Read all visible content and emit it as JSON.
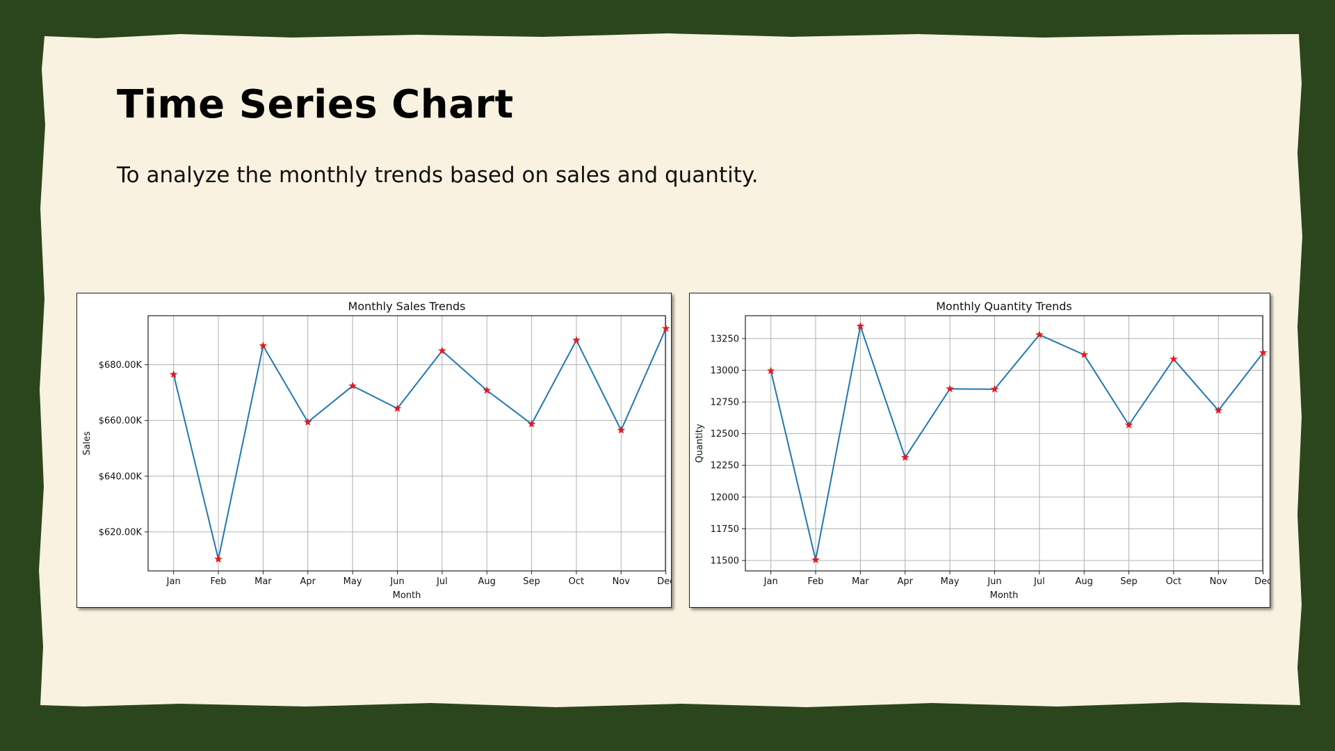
{
  "slide": {
    "title": "Time Series Chart",
    "subtitle": "To analyze the monthly trends based on sales and quantity."
  },
  "colors": {
    "background": "#2b461d",
    "paper": "#f9f2e0",
    "line": "#1f77b4",
    "marker": "#e31a1c"
  },
  "chart_data": [
    {
      "type": "line",
      "title": "Monthly Sales Trends",
      "xlabel": "Month",
      "ylabel": "Sales",
      "categories": [
        "Jan",
        "Feb",
        "Mar",
        "Apr",
        "May",
        "Jun",
        "Jul",
        "Aug",
        "Sep",
        "Oct",
        "Nov",
        "Dec"
      ],
      "values": [
        676500,
        610200,
        686800,
        659400,
        672400,
        664300,
        685000,
        670800,
        658700,
        688800,
        656500,
        693000
      ],
      "ylim": [
        606000,
        697600
      ],
      "yticks": [
        620000,
        640000,
        660000,
        680000
      ],
      "ytick_labels": [
        "$620.00K",
        "$640.00K",
        "$660.00K",
        "$680.00K"
      ],
      "grid": true,
      "marker": "star"
    },
    {
      "type": "line",
      "title": "Monthly Quantity Trends",
      "xlabel": "Month",
      "ylabel": "Quantity",
      "categories": [
        "Jan",
        "Feb",
        "Mar",
        "Apr",
        "May",
        "Jun",
        "Jul",
        "Aug",
        "Sep",
        "Oct",
        "Nov",
        "Dec"
      ],
      "values": [
        12995,
        11505,
        13348,
        12312,
        12853,
        12850,
        13280,
        13122,
        12568,
        13087,
        12683,
        13138
      ],
      "ylim": [
        11418,
        13430
      ],
      "yticks": [
        11500,
        11750,
        12000,
        12250,
        12500,
        12750,
        13000,
        13250
      ],
      "ytick_labels": [
        "11500",
        "11750",
        "12000",
        "12250",
        "12500",
        "12750",
        "13000",
        "13250"
      ],
      "grid": true,
      "marker": "star"
    }
  ]
}
